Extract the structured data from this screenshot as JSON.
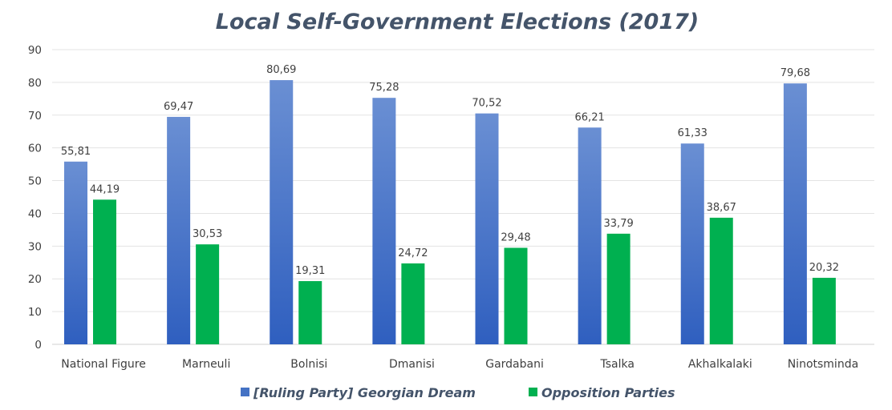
{
  "chart_data": {
    "type": "bar",
    "title": "Local Self-Government Elections (2017)",
    "xlabel": "",
    "ylabel": "",
    "ylim": [
      0,
      90
    ],
    "yticks": [
      0,
      10,
      20,
      30,
      40,
      50,
      60,
      70,
      80,
      90
    ],
    "grid": true,
    "legend_position": "bottom",
    "categories": [
      "National Figure",
      "Marneuli",
      "Bolnisi",
      "Dmanisi",
      "Gardabani",
      "Tsalka",
      "Akhalkalaki",
      "Ninotsminda"
    ],
    "series": [
      {
        "name": "[Ruling Party] Georgian Dream",
        "color": "#4472c4",
        "values": [
          55.81,
          69.47,
          80.69,
          75.28,
          70.52,
          66.21,
          61.33,
          79.68
        ],
        "labels": [
          "55,81",
          "69,47",
          "80,69",
          "75,28",
          "70,52",
          "66,21",
          "61,33",
          "79,68"
        ]
      },
      {
        "name": "Opposition Parties",
        "color": "#00b050",
        "values": [
          44.19,
          30.53,
          19.31,
          24.72,
          29.48,
          33.79,
          38.67,
          20.32
        ],
        "labels": [
          "44,19",
          "30,53",
          "19,31",
          "24,72",
          "29,48",
          "33,79",
          "38,67",
          "20,32"
        ]
      }
    ]
  }
}
